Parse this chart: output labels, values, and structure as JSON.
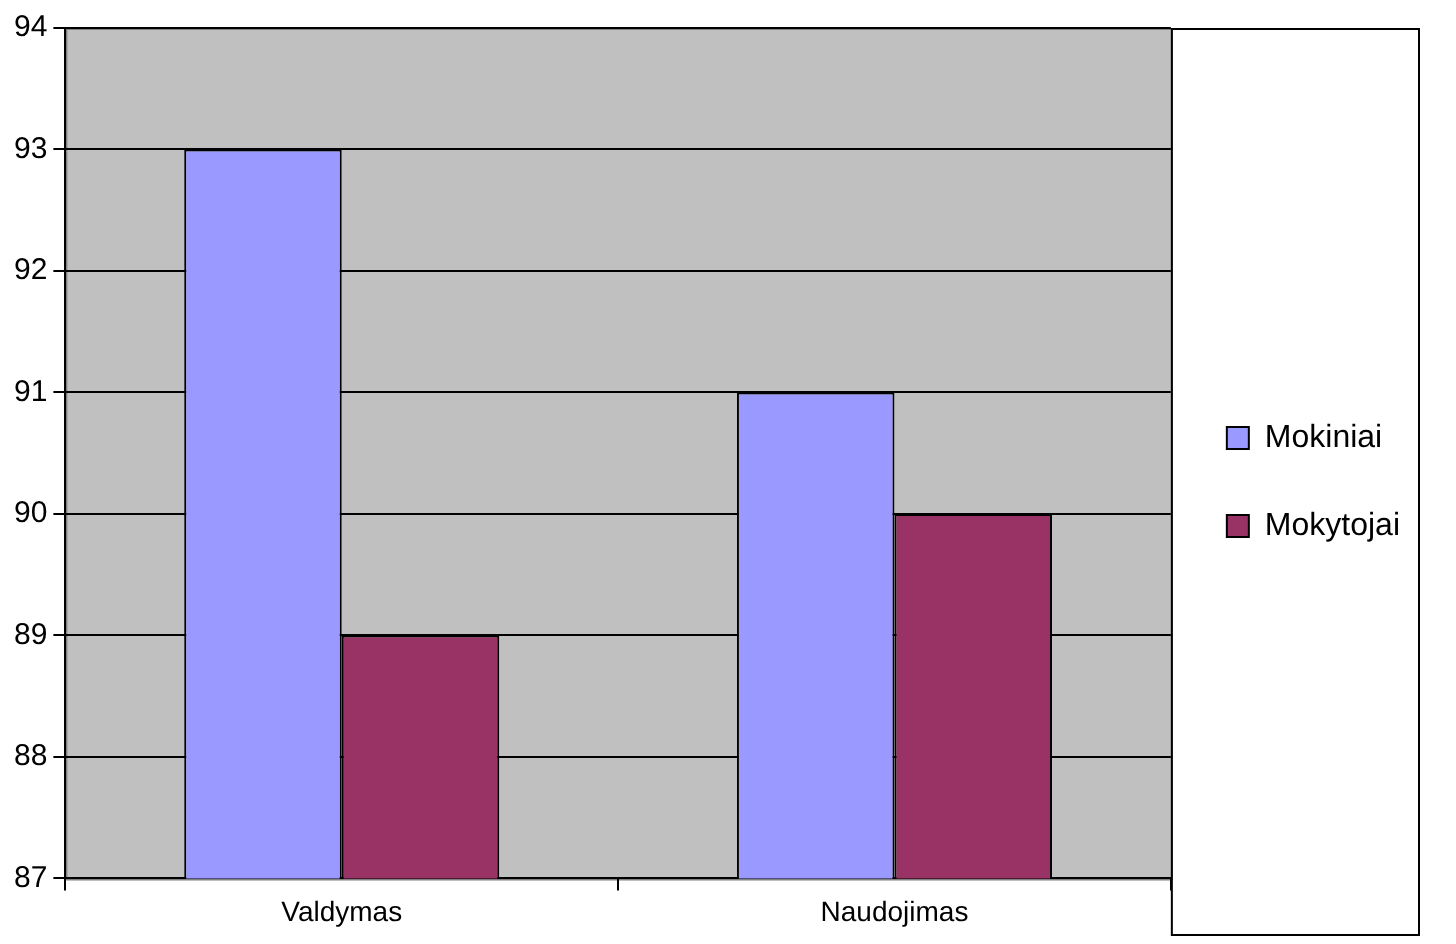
{
  "chart_data": {
    "type": "bar",
    "categories": [
      "Valdymas",
      "Naudojimas"
    ],
    "series": [
      {
        "name": "Mokiniai",
        "color": "#9999ff",
        "values": [
          93,
          91
        ]
      },
      {
        "name": "Mokytojai",
        "color": "#993366",
        "values": [
          89,
          90
        ]
      }
    ],
    "ylim": [
      87,
      94
    ],
    "yticks": [
      87,
      88,
      89,
      90,
      91,
      92,
      93,
      94
    ],
    "grid": "y",
    "legend": "right"
  }
}
